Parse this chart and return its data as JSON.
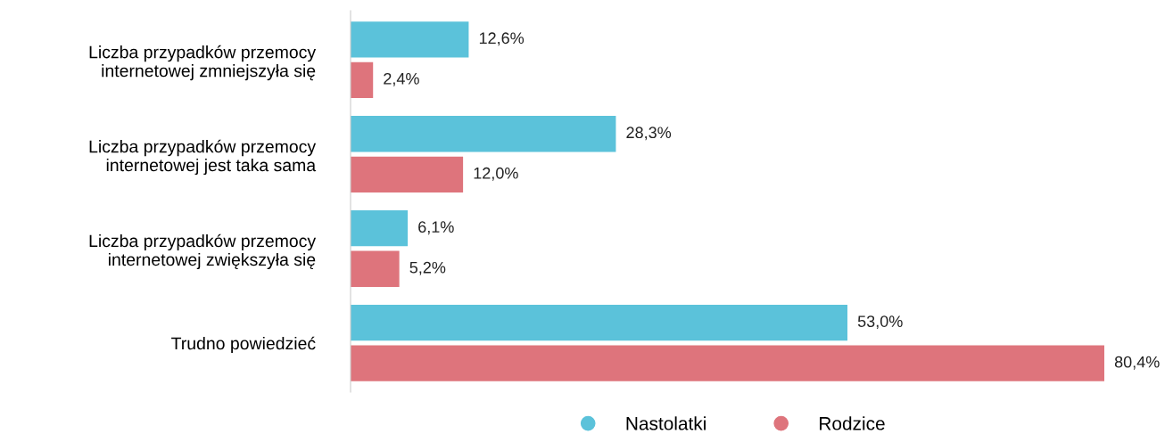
{
  "chart_data": {
    "type": "bar",
    "orientation": "horizontal",
    "categories": [
      "Liczba przypadków przemocy\ninternetowej zmniejszyła się",
      "Liczba przypadków przemocy\ninternetowej jest taka sama",
      "Liczba przypadków przemocy\ninternetowej zwiększyła się",
      "Trudno powiedzieć"
    ],
    "series": [
      {
        "name": "Nastolatki",
        "color": "#5bc2da",
        "values": [
          12.6,
          28.3,
          6.1,
          53.0
        ],
        "value_labels": [
          "12,6%",
          "28,3%",
          "6,1%",
          "53,0%"
        ]
      },
      {
        "name": "Rodzice",
        "color": "#de747c",
        "values": [
          2.4,
          12.0,
          5.2,
          80.4
        ],
        "value_labels": [
          "2,4%",
          "12,0%",
          "5,2%",
          "80,4%"
        ]
      }
    ],
    "legend": "bottom",
    "grid": false,
    "tick_labels": "y"
  }
}
